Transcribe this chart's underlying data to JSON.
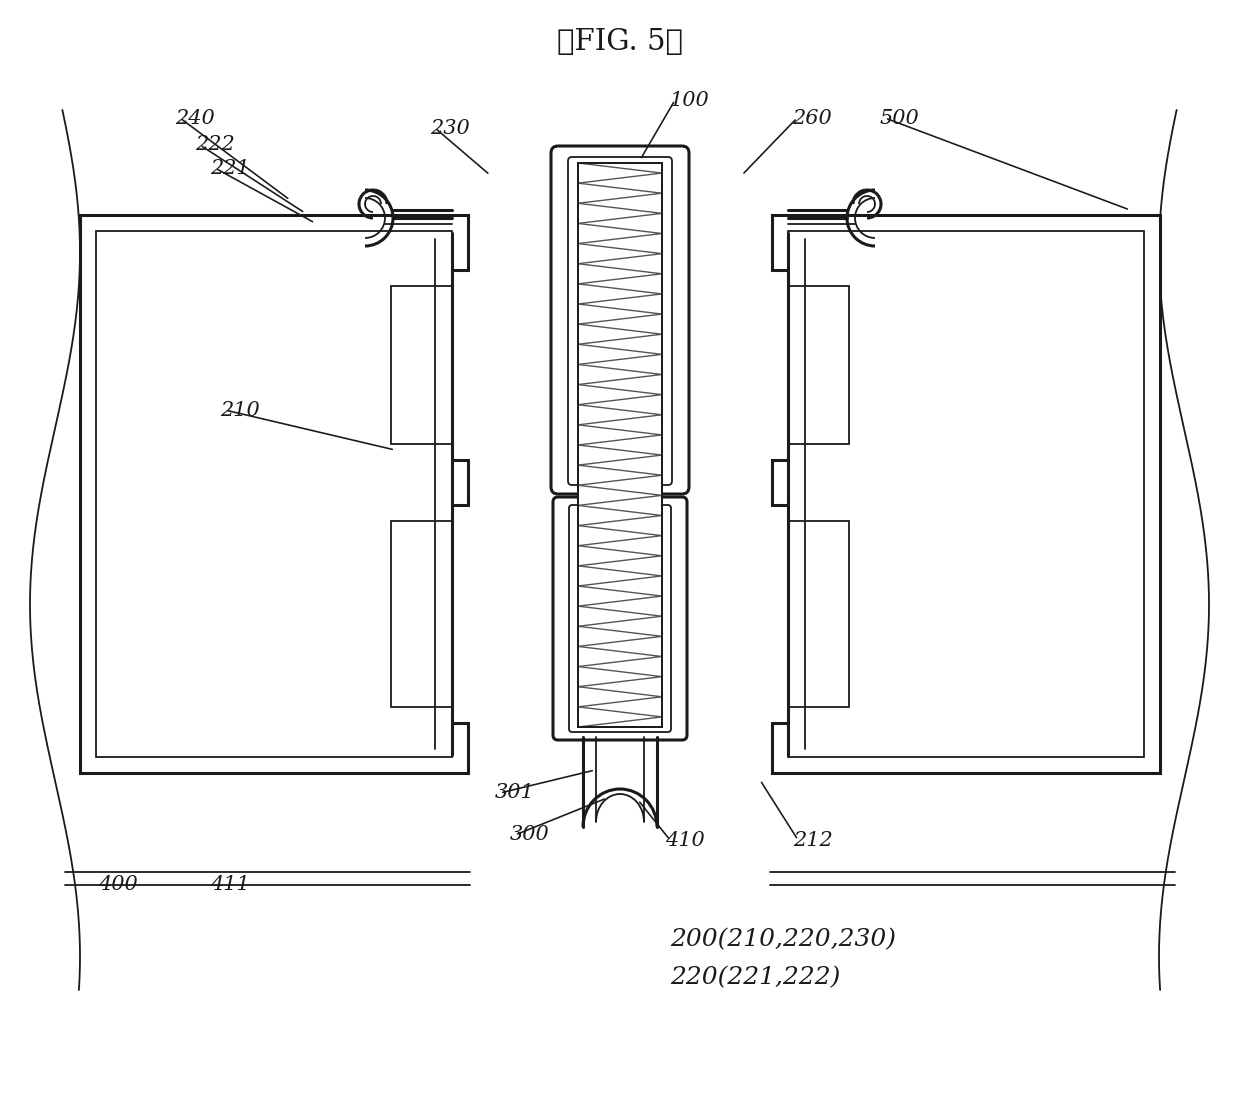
{
  "title": "《FIG. 5》",
  "title_fontsize": 21,
  "bg_color": "#ffffff",
  "line_color": "#1a1a1a",
  "lw_main": 2.2,
  "lw_thin": 1.3,
  "label_fontsize": 15
}
